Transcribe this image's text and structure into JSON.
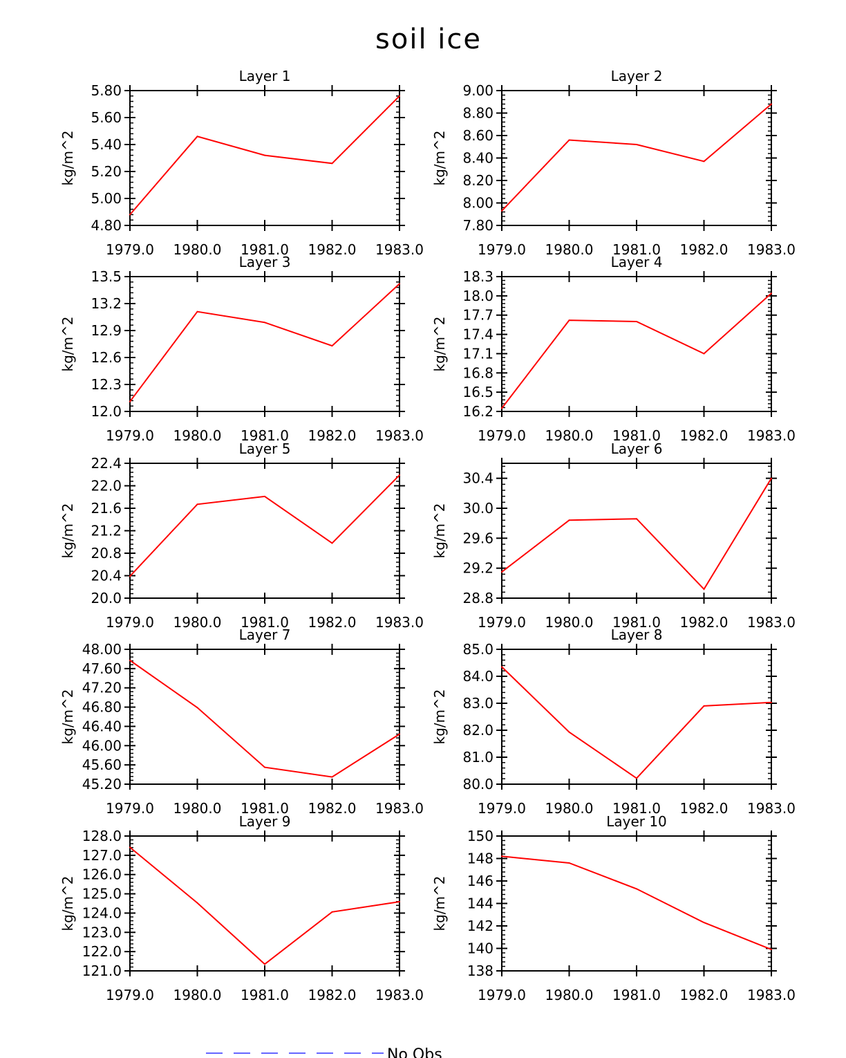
{
  "title": "soil ice",
  "legend": {
    "label": "No Obs",
    "color": "#6666ff",
    "style": "dashed",
    "placement": "bottom-center"
  },
  "colors": {
    "line": "#ff0000",
    "axis": "#000000"
  },
  "chart_data": [
    {
      "type": "line",
      "title": "Layer 1",
      "ylabel": "kg/m^2",
      "x": [
        1979,
        1980,
        1981,
        1982,
        1983
      ],
      "values": [
        4.88,
        5.46,
        5.32,
        5.26,
        5.76
      ],
      "ylim": [
        4.8,
        5.8
      ],
      "yticks": [
        "4.80",
        "5.00",
        "5.20",
        "5.40",
        "5.60",
        "5.80"
      ],
      "xticks": [
        "1979.0",
        "1980.0",
        "1981.0",
        "1982.0",
        "1983.0"
      ]
    },
    {
      "type": "line",
      "title": "Layer 2",
      "ylabel": "kg/m^2",
      "x": [
        1979,
        1980,
        1981,
        1982,
        1983
      ],
      "values": [
        7.93,
        8.56,
        8.52,
        8.37,
        8.88
      ],
      "ylim": [
        7.8,
        9.0
      ],
      "yticks": [
        "7.80",
        "8.00",
        "8.20",
        "8.40",
        "8.60",
        "8.80",
        "9.00"
      ],
      "xticks": [
        "1979.0",
        "1980.0",
        "1981.0",
        "1982.0",
        "1983.0"
      ]
    },
    {
      "type": "line",
      "title": "Layer 3",
      "ylabel": "kg/m^2",
      "x": [
        1979,
        1980,
        1981,
        1982,
        1983
      ],
      "values": [
        12.11,
        13.11,
        12.99,
        12.73,
        13.42
      ],
      "ylim": [
        12.0,
        13.5
      ],
      "yticks": [
        "12.0",
        "12.3",
        "12.6",
        "12.9",
        "13.2",
        "13.5"
      ],
      "xticks": [
        "1979.0",
        "1980.0",
        "1981.0",
        "1982.0",
        "1983.0"
      ]
    },
    {
      "type": "line",
      "title": "Layer 4",
      "ylabel": "kg/m^2",
      "x": [
        1979,
        1980,
        1981,
        1982,
        1983
      ],
      "values": [
        16.25,
        17.62,
        17.6,
        17.1,
        18.04
      ],
      "ylim": [
        16.2,
        18.3
      ],
      "yticks": [
        "16.2",
        "16.5",
        "16.8",
        "17.1",
        "17.4",
        "17.7",
        "18.0",
        "18.3"
      ],
      "xticks": [
        "1979.0",
        "1980.0",
        "1981.0",
        "1982.0",
        "1983.0"
      ]
    },
    {
      "type": "line",
      "title": "Layer 5",
      "ylabel": "kg/m^2",
      "x": [
        1979,
        1980,
        1981,
        1982,
        1983
      ],
      "values": [
        20.39,
        21.67,
        21.81,
        20.98,
        22.19
      ],
      "ylim": [
        20.0,
        22.4
      ],
      "yticks": [
        "20.0",
        "20.4",
        "20.8",
        "21.2",
        "21.6",
        "22.0",
        "22.4"
      ],
      "xticks": [
        "1979.0",
        "1980.0",
        "1981.0",
        "1982.0",
        "1983.0"
      ]
    },
    {
      "type": "line",
      "title": "Layer 6",
      "ylabel": "kg/m^2",
      "x": [
        1979,
        1980,
        1981,
        1982,
        1983
      ],
      "values": [
        29.15,
        29.84,
        29.86,
        28.92,
        30.4
      ],
      "ylim": [
        28.8,
        30.6
      ],
      "yticks": [
        "28.8",
        "29.2",
        "29.6",
        "30.0",
        "30.4"
      ],
      "xticks": [
        "1979.0",
        "1980.0",
        "1981.0",
        "1982.0",
        "1983.0"
      ]
    },
    {
      "type": "line",
      "title": "Layer 7",
      "ylabel": "kg/m^2",
      "x": [
        1979,
        1980,
        1981,
        1982,
        1983
      ],
      "values": [
        47.77,
        46.79,
        45.55,
        45.35,
        46.24
      ],
      "ylim": [
        45.2,
        48.0
      ],
      "yticks": [
        "45.20",
        "45.60",
        "46.00",
        "46.40",
        "46.80",
        "47.20",
        "47.60",
        "48.00"
      ],
      "xticks": [
        "1979.0",
        "1980.0",
        "1981.0",
        "1982.0",
        "1983.0"
      ]
    },
    {
      "type": "line",
      "title": "Layer 8",
      "ylabel": "kg/m^2",
      "x": [
        1979,
        1980,
        1981,
        1982,
        1983
      ],
      "values": [
        84.35,
        81.93,
        80.22,
        82.9,
        83.03
      ],
      "ylim": [
        80.0,
        85.0
      ],
      "yticks": [
        "80.0",
        "81.0",
        "82.0",
        "83.0",
        "84.0",
        "85.0"
      ],
      "xticks": [
        "1979.0",
        "1980.0",
        "1981.0",
        "1982.0",
        "1983.0"
      ]
    },
    {
      "type": "line",
      "title": "Layer 9",
      "ylabel": "kg/m^2",
      "x": [
        1979,
        1980,
        1981,
        1982,
        1983
      ],
      "values": [
        127.41,
        124.53,
        121.35,
        124.06,
        124.59
      ],
      "ylim": [
        121.0,
        128.0
      ],
      "yticks": [
        "121.0",
        "122.0",
        "123.0",
        "124.0",
        "125.0",
        "126.0",
        "127.0",
        "128.0"
      ],
      "xticks": [
        "1979.0",
        "1980.0",
        "1981.0",
        "1982.0",
        "1983.0"
      ]
    },
    {
      "type": "line",
      "title": "Layer 10",
      "ylabel": "kg/m^2",
      "x": [
        1979,
        1980,
        1981,
        1982,
        1983
      ],
      "values": [
        148.2,
        147.6,
        145.3,
        142.3,
        139.9
      ],
      "ylim": [
        138,
        150
      ],
      "yticks": [
        "138",
        "140",
        "142",
        "144",
        "146",
        "148",
        "150"
      ],
      "xticks": [
        "1979.0",
        "1980.0",
        "1981.0",
        "1982.0",
        "1983.0"
      ]
    }
  ]
}
